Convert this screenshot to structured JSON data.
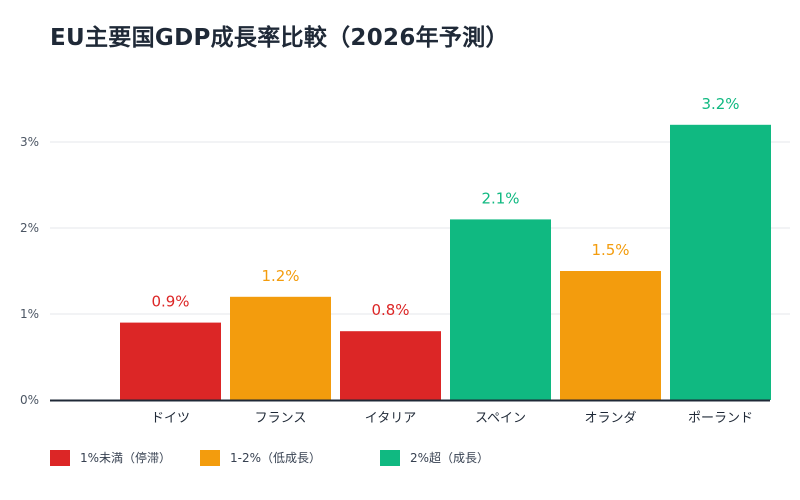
{
  "chart_data": {
    "type": "bar",
    "title": "EU主要国GDP成長率比較（2026年予測）",
    "categories": [
      "ドイツ",
      "フランス",
      "イタリア",
      "スペイン",
      "オランダ",
      "ポーランド"
    ],
    "values": [
      0.9,
      1.2,
      0.8,
      2.1,
      1.5,
      3.2
    ],
    "data_labels": [
      "0.9%",
      "1.2%",
      "0.8%",
      "2.1%",
      "1.5%",
      "3.2%"
    ],
    "bar_groups": [
      "stagnant",
      "low",
      "stagnant",
      "growth",
      "low",
      "growth"
    ],
    "ylim": [
      0,
      3.2
    ],
    "yticks": [
      0,
      1,
      2,
      3
    ],
    "ytick_labels": [
      "0%",
      "1%",
      "2%",
      "3%"
    ],
    "xlabel": "",
    "ylabel": "",
    "grid": true,
    "legend_position": "bottom",
    "legend": [
      {
        "key": "stagnant",
        "label": "1%未満（停滞）",
        "color": "#dc2626"
      },
      {
        "key": "low",
        "label": "1-2%（低成長）",
        "color": "#f39c0d"
      },
      {
        "key": "growth",
        "label": "2%超（成長）",
        "color": "#10b981"
      }
    ]
  }
}
